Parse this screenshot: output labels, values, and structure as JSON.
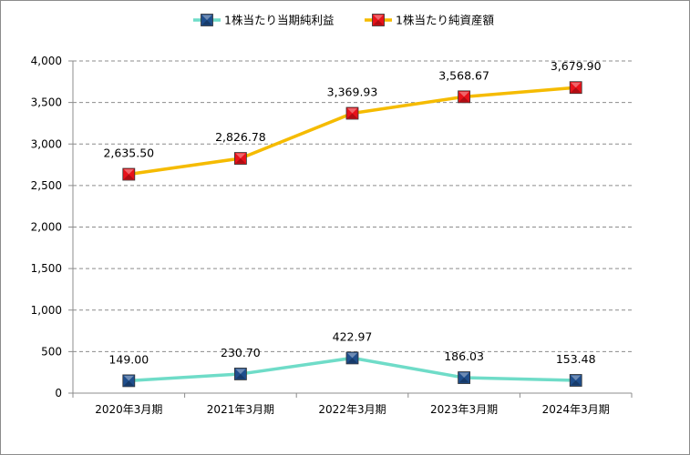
{
  "chart_data": {
    "type": "line",
    "categories": [
      "2020年3月期",
      "2021年3月期",
      "2022年3月期",
      "2023年3月期",
      "2024年3月期"
    ],
    "series": [
      {
        "name": "1株当たり当期純利益",
        "values": [
          149.0,
          230.7,
          422.97,
          186.03,
          153.48
        ],
        "labels": [
          "149.00",
          "230.70",
          "422.97",
          "186.03",
          "153.48"
        ],
        "line_color": "#6fdcc8",
        "marker_color": "#1f4e8c"
      },
      {
        "name": "1株当たり純資産額",
        "values": [
          2635.5,
          2826.78,
          3369.93,
          3568.67,
          3679.9
        ],
        "labels": [
          "2,635.50",
          "2,826.78",
          "3,369.93",
          "3,568.67",
          "3,679.90"
        ],
        "line_color": "#f5bb00",
        "marker_color": "#e8121a"
      }
    ],
    "ylim": [
      0,
      4000
    ],
    "yticks": [
      0,
      500,
      1000,
      1500,
      2000,
      2500,
      3000,
      3500,
      4000
    ],
    "ytick_labels": [
      "0",
      "500",
      "1,000",
      "1,500",
      "2,000",
      "2,500",
      "3,000",
      "3,500",
      "4,000"
    ],
    "grid": true,
    "legend_position": "top"
  }
}
